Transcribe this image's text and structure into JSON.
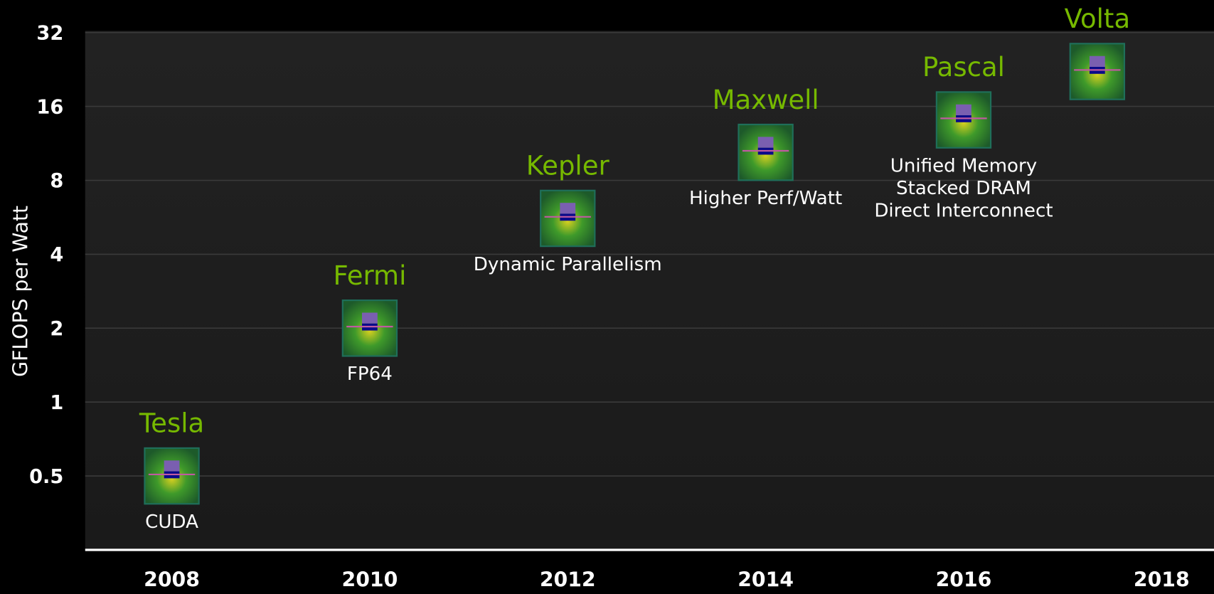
{
  "chart_data": {
    "type": "scatter",
    "y_label": "GFLOPS per Watt",
    "yscale": "log",
    "ylim": [
      0.25,
      32
    ],
    "yticks": [
      0.5,
      1,
      2,
      4,
      8,
      16,
      32
    ],
    "xlim": [
      2007.125,
      2018.53
    ],
    "xticks": [
      2008,
      2010,
      2012,
      2014,
      2016,
      2018
    ],
    "grid": true,
    "color": "#76b900",
    "x": [
      2008,
      2010,
      2012,
      2014,
      2016,
      2017.35
    ],
    "values": [
      0.5,
      2,
      5.6,
      10.4,
      14.1,
      22.2
    ],
    "point_labels": [
      "Tesla",
      "Fermi",
      "Kepler",
      "Maxwell",
      "Pascal",
      "Volta"
    ],
    "annotations": [
      [
        "CUDA"
      ],
      [
        "FP64"
      ],
      [
        "Dynamic Parallelism"
      ],
      [
        "Higher Perf/Watt"
      ],
      [
        "Unified Memory",
        "Stacked DRAM",
        "Direct Interconnect"
      ],
      []
    ]
  }
}
